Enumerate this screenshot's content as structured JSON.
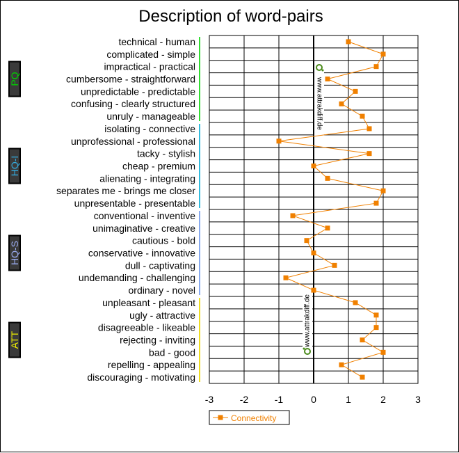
{
  "chart_data": {
    "type": "line",
    "title": "Description of word-pairs",
    "xlim": [
      -3,
      3
    ],
    "x_ticks": [
      "-3",
      "-2",
      "-1",
      "0",
      "1",
      "2",
      "3"
    ],
    "grid": true,
    "legend_position": "bottom-left",
    "watermark": "www.attrakdiff.de",
    "categories": [
      "technical - human",
      "complicated - simple",
      "impractical - practical",
      "cumbersome - straightforward",
      "unpredictable - predictable",
      "confusing - clearly structured",
      "unruly - manageable",
      "isolating - connective",
      "unprofessional - professional",
      "tacky - stylish",
      "cheap - premium",
      "alienating - integrating",
      "separates me - brings me closer",
      "unpresentable - presentable",
      "conventional - inventive",
      "unimaginative - creative",
      "cautious - bold",
      "conservative - innovative",
      "dull - captivating",
      "undemanding - challenging",
      "ordinary - novel",
      "unpleasant - pleasant",
      "ugly - attractive",
      "disagreeable - likeable",
      "rejecting - inviting",
      "bad - good",
      "repelling - appealing",
      "discouraging - motivating"
    ],
    "series": [
      {
        "name": "Connectivity",
        "color": "#f08000",
        "values": [
          1.0,
          2.0,
          1.8,
          0.4,
          1.2,
          0.8,
          1.4,
          1.6,
          -1.0,
          1.6,
          0.0,
          0.4,
          2.0,
          1.8,
          -0.6,
          0.4,
          -0.2,
          0.0,
          0.6,
          -0.8,
          0.0,
          1.2,
          1.8,
          1.8,
          1.4,
          2.0,
          0.8,
          1.4
        ]
      }
    ],
    "groups": [
      {
        "label": "PQ",
        "start": 0,
        "end": 6,
        "text_color": "#00d000",
        "bar_color": "#33dd33"
      },
      {
        "label": "HQ-I",
        "start": 7,
        "end": 13,
        "text_color": "#33aadd",
        "bar_color": "#33bbdd"
      },
      {
        "label": "HQ-S",
        "start": 14,
        "end": 20,
        "text_color": "#99aaee",
        "bar_color": "#88aaee"
      },
      {
        "label": "ATT",
        "start": 21,
        "end": 27,
        "text_color": "#eeee00",
        "bar_color": "#eedd22"
      }
    ]
  }
}
